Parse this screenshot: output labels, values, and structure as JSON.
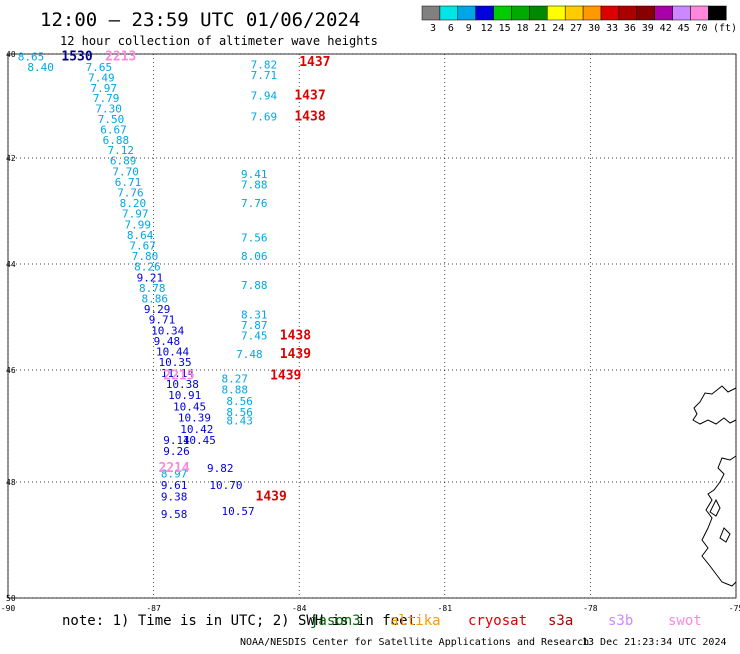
{
  "header": {
    "title": "12:00 – 23:59 UTC 01/06/2024",
    "subtitle": "12 hour collection of altimeter wave heights"
  },
  "legend": {
    "unit": "(ft)",
    "bins": [
      {
        "label": "3",
        "color": "#808080"
      },
      {
        "label": "6",
        "color": "#00e5e5"
      },
      {
        "label": "9",
        "color": "#00a6e6"
      },
      {
        "label": "12",
        "color": "#0000dd"
      },
      {
        "label": "15",
        "color": "#00cc00"
      },
      {
        "label": "18",
        "color": "#00aa00"
      },
      {
        "label": "21",
        "color": "#008800"
      },
      {
        "label": "24",
        "color": "#ffff00"
      },
      {
        "label": "27",
        "color": "#ffcc00"
      },
      {
        "label": "30",
        "color": "#ff9900"
      },
      {
        "label": "33",
        "color": "#dd0000"
      },
      {
        "label": "36",
        "color": "#aa0000"
      },
      {
        "label": "39",
        "color": "#880000"
      },
      {
        "label": "42",
        "color": "#aa00aa"
      },
      {
        "label": "45",
        "color": "#cc88ff"
      },
      {
        "label": "70",
        "color": "#ff88dd"
      },
      {
        "label": "",
        "color": "#000000"
      }
    ]
  },
  "map": {
    "lat_labels": [
      "40",
      "42",
      "44",
      "46",
      "48",
      "50"
    ],
    "lon_labels": [
      "-90",
      "-87",
      "-84",
      "-81",
      "-78",
      "-75"
    ],
    "lat_range": [
      40,
      50
    ],
    "lon_range": [
      -90,
      -75
    ]
  },
  "chart_data": {
    "type": "scatter",
    "x_axis": "longitude",
    "y_axis": "latitude",
    "observations": [
      {
        "lon": -89.8,
        "lat": 40.05,
        "text": "8.65",
        "color": "#00a6e6"
      },
      {
        "lon": -89.6,
        "lat": 40.25,
        "text": "8.40",
        "color": "#00a6e6"
      },
      {
        "lon": -88.9,
        "lat": 40.05,
        "text": "1530",
        "color": "#000088"
      },
      {
        "lon": -88.0,
        "lat": 40.05,
        "text": "2213",
        "color": "#ff88dd"
      },
      {
        "lon": -88.4,
        "lat": 40.25,
        "text": "7.65",
        "color": "#00a6e6"
      },
      {
        "lon": -88.35,
        "lat": 40.45,
        "text": "7.49",
        "color": "#00a6e6"
      },
      {
        "lon": -88.3,
        "lat": 40.65,
        "text": "7.97",
        "color": "#00a6e6"
      },
      {
        "lon": -88.25,
        "lat": 40.85,
        "text": "7.79",
        "color": "#00a6e6"
      },
      {
        "lon": -88.2,
        "lat": 41.05,
        "text": "7.30",
        "color": "#00a6e6"
      },
      {
        "lon": -88.15,
        "lat": 41.25,
        "text": "7.50",
        "color": "#00a6e6"
      },
      {
        "lon": -88.1,
        "lat": 41.45,
        "text": "6.67",
        "color": "#00a6e6"
      },
      {
        "lon": -88.05,
        "lat": 41.65,
        "text": "6.88",
        "color": "#00a6e6"
      },
      {
        "lon": -87.95,
        "lat": 41.85,
        "text": "7.12",
        "color": "#00a6e6"
      },
      {
        "lon": -87.9,
        "lat": 42.05,
        "text": "6.89",
        "color": "#00a6e6"
      },
      {
        "lon": -87.85,
        "lat": 42.25,
        "text": "7.70",
        "color": "#00a6e6"
      },
      {
        "lon": -87.8,
        "lat": 42.45,
        "text": "6.71",
        "color": "#00a6e6"
      },
      {
        "lon": -87.75,
        "lat": 42.65,
        "text": "7.76",
        "color": "#00a6e6"
      },
      {
        "lon": -87.7,
        "lat": 42.85,
        "text": "8.20",
        "color": "#00a6e6"
      },
      {
        "lon": -87.65,
        "lat": 43.05,
        "text": "7.97",
        "color": "#00a6e6"
      },
      {
        "lon": -87.6,
        "lat": 43.25,
        "text": "7.99",
        "color": "#00a6e6"
      },
      {
        "lon": -87.55,
        "lat": 43.45,
        "text": "8.64",
        "color": "#00a6e6"
      },
      {
        "lon": -87.5,
        "lat": 43.65,
        "text": "7.67",
        "color": "#00a6e6"
      },
      {
        "lon": -87.45,
        "lat": 43.85,
        "text": "7.80",
        "color": "#00a6e6"
      },
      {
        "lon": -87.4,
        "lat": 44.05,
        "text": "8.26",
        "color": "#00a6e6"
      },
      {
        "lon": -87.35,
        "lat": 44.25,
        "text": "9.21",
        "color": "#0000dd"
      },
      {
        "lon": -87.3,
        "lat": 44.45,
        "text": "8.78",
        "color": "#00a6e6"
      },
      {
        "lon": -87.25,
        "lat": 44.65,
        "text": "8.86",
        "color": "#00a6e6"
      },
      {
        "lon": -87.2,
        "lat": 44.85,
        "text": "9.29",
        "color": "#0000dd"
      },
      {
        "lon": -87.1,
        "lat": 45.05,
        "text": "9.71",
        "color": "#0000dd"
      },
      {
        "lon": -87.05,
        "lat": 45.25,
        "text": "10.34",
        "color": "#0000dd"
      },
      {
        "lon": -87.0,
        "lat": 45.45,
        "text": "9.48",
        "color": "#0000dd"
      },
      {
        "lon": -86.95,
        "lat": 45.65,
        "text": "10.44",
        "color": "#0000dd"
      },
      {
        "lon": -86.9,
        "lat": 45.85,
        "text": "10.35",
        "color": "#0000dd"
      },
      {
        "lon": -86.85,
        "lat": 46.05,
        "text": "11.14",
        "color": "#0000dd"
      },
      {
        "lon": -86.75,
        "lat": 46.25,
        "text": "10.38",
        "color": "#0000dd"
      },
      {
        "lon": -86.7,
        "lat": 46.45,
        "text": "10.91",
        "color": "#0000dd"
      },
      {
        "lon": -86.6,
        "lat": 46.65,
        "text": "10.45",
        "color": "#0000dd"
      },
      {
        "lon": -86.5,
        "lat": 46.85,
        "text": "10.39",
        "color": "#0000dd"
      },
      {
        "lon": -86.45,
        "lat": 47.05,
        "text": "10.42",
        "color": "#0000dd"
      },
      {
        "lon": -86.8,
        "lat": 47.25,
        "text": "9.14",
        "color": "#0000dd"
      },
      {
        "lon": -86.4,
        "lat": 47.25,
        "text": "10.45",
        "color": "#0000dd"
      },
      {
        "lon": -86.8,
        "lat": 47.45,
        "text": "9.26",
        "color": "#0000dd"
      },
      {
        "lon": -86.85,
        "lat": 47.85,
        "text": "8.97",
        "color": "#00a6e6"
      },
      {
        "lon": -86.85,
        "lat": 48.05,
        "text": "9.61",
        "color": "#0000dd"
      },
      {
        "lon": -86.85,
        "lat": 48.25,
        "text": "9.38",
        "color": "#0000dd"
      },
      {
        "lon": -86.85,
        "lat": 48.55,
        "text": "9.58",
        "color": "#0000dd"
      },
      {
        "lon": -85.9,
        "lat": 47.75,
        "text": "9.82",
        "color": "#0000dd"
      },
      {
        "lon": -85.85,
        "lat": 48.05,
        "text": "10.70",
        "color": "#0000dd"
      },
      {
        "lon": -85.6,
        "lat": 48.5,
        "text": "10.57",
        "color": "#0000dd"
      },
      {
        "lon": -85.0,
        "lat": 40.2,
        "text": "7.82",
        "color": "#00a6e6"
      },
      {
        "lon": -85.0,
        "lat": 40.4,
        "text": "7.71",
        "color": "#00a6e6"
      },
      {
        "lon": -84.0,
        "lat": 40.15,
        "text": "1437",
        "color": "#dd0000"
      },
      {
        "lon": -85.0,
        "lat": 40.8,
        "text": "7.94",
        "color": "#00a6e6"
      },
      {
        "lon": -84.1,
        "lat": 40.8,
        "text": "1437",
        "color": "#dd0000"
      },
      {
        "lon": -85.0,
        "lat": 41.2,
        "text": "7.69",
        "color": "#00a6e6"
      },
      {
        "lon": -84.1,
        "lat": 41.2,
        "text": "1438",
        "color": "#dd0000"
      },
      {
        "lon": -85.2,
        "lat": 42.3,
        "text": "9.41",
        "color": "#00a6e6"
      },
      {
        "lon": -85.2,
        "lat": 42.5,
        "text": "7.88",
        "color": "#00a6e6"
      },
      {
        "lon": -85.2,
        "lat": 42.85,
        "text": "7.76",
        "color": "#00a6e6"
      },
      {
        "lon": -85.2,
        "lat": 43.5,
        "text": "7.56",
        "color": "#00a6e6"
      },
      {
        "lon": -85.2,
        "lat": 43.85,
        "text": "8.06",
        "color": "#00a6e6"
      },
      {
        "lon": -85.2,
        "lat": 44.4,
        "text": "7.88",
        "color": "#00a6e6"
      },
      {
        "lon": -85.2,
        "lat": 44.95,
        "text": "8.31",
        "color": "#00a6e6"
      },
      {
        "lon": -85.2,
        "lat": 45.15,
        "text": "7.87",
        "color": "#00a6e6"
      },
      {
        "lon": -85.2,
        "lat": 45.35,
        "text": "7.45",
        "color": "#00a6e6"
      },
      {
        "lon": -84.4,
        "lat": 45.35,
        "text": "1438",
        "color": "#dd0000"
      },
      {
        "lon": -85.3,
        "lat": 45.7,
        "text": "7.48",
        "color": "#00a6e6"
      },
      {
        "lon": -84.4,
        "lat": 45.7,
        "text": "1439",
        "color": "#dd0000"
      },
      {
        "lon": -86.8,
        "lat": 46.1,
        "text": "2215",
        "color": "#ff88dd"
      },
      {
        "lon": -85.6,
        "lat": 46.15,
        "text": "8.27",
        "color": "#00a6e6"
      },
      {
        "lon": -84.6,
        "lat": 46.1,
        "text": "1439",
        "color": "#dd0000"
      },
      {
        "lon": -85.6,
        "lat": 46.35,
        "text": "8.88",
        "color": "#00a6e6"
      },
      {
        "lon": -85.5,
        "lat": 46.55,
        "text": "8.56",
        "color": "#00a6e6"
      },
      {
        "lon": -85.5,
        "lat": 46.75,
        "text": "8.56",
        "color": "#00a6e6"
      },
      {
        "lon": -85.5,
        "lat": 46.9,
        "text": "8.43",
        "color": "#00a6e6"
      },
      {
        "lon": -84.9,
        "lat": 48.25,
        "text": "1439",
        "color": "#dd0000"
      },
      {
        "lon": -86.9,
        "lat": 47.75,
        "text": "2214",
        "color": "#ff88dd"
      }
    ]
  },
  "note": {
    "text": "note:  1) Time is in UTC; 2) SWH is in feet",
    "satellites": [
      {
        "name": "jason3",
        "color": "#006600"
      },
      {
        "name": "altika",
        "color": "#ff9900"
      },
      {
        "name": "cryosat",
        "color": "#dd0000"
      },
      {
        "name": "s3a",
        "color": "#aa0000"
      },
      {
        "name": "s3b",
        "color": "#cc88ff"
      },
      {
        "name": "swot",
        "color": "#ff88dd"
      }
    ]
  },
  "footer": {
    "credit": "NOAA/NESDIS Center for Satellite Applications and Research",
    "timestamp": "13 Dec 21:23:34 UTC 2024"
  }
}
